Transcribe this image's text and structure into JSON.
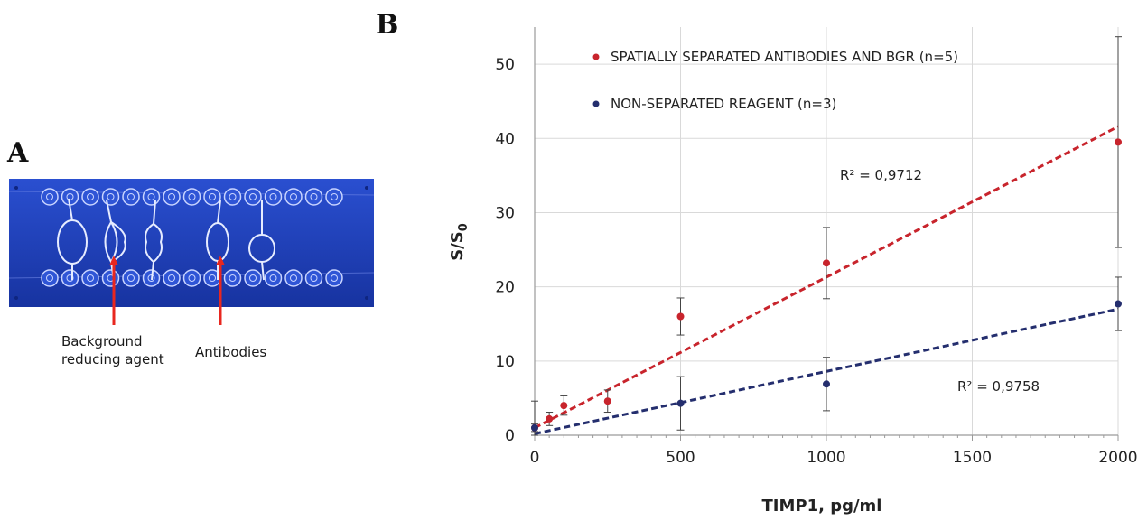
{
  "panel_a": {
    "label": "A",
    "captions": {
      "background": [
        "Background",
        "reducing agent"
      ],
      "antibodies": "Antibodies"
    },
    "colors": {
      "chip": "#1e3fb4",
      "arrow": "#e8271f"
    }
  },
  "panel_b": {
    "label": "B"
  },
  "chart_data": {
    "type": "scatter",
    "xlabel": "TIMP1, pg/ml",
    "ylabel": "S/S",
    "ylabel_sub": "0",
    "xlim": [
      0,
      2000
    ],
    "ylim": [
      0,
      55
    ],
    "xticks": [
      0,
      500,
      1000,
      1500,
      2000
    ],
    "yticks": [
      0,
      10,
      20,
      30,
      40,
      50
    ],
    "grid": true,
    "legend_position": "top-left",
    "series": [
      {
        "name": "SPATIALLY SEPARATED ANTIBODIES AND BGR  (n=5)",
        "color": "#c8242c",
        "x": [
          0,
          50,
          100,
          250,
          500,
          1000,
          2000
        ],
        "y": [
          1.0,
          2.2,
          4.0,
          4.6,
          16.0,
          23.2,
          39.5
        ],
        "err": [
          0.5,
          0.9,
          1.3,
          1.5,
          2.5,
          4.8,
          14.2
        ],
        "trend": {
          "intercept": 1.0,
          "slope": 0.0203
        },
        "r2_label": "R² = 0,9712"
      },
      {
        "name": "NON-SEPARATED REAGENT  (n=3)",
        "color": "#242e6e",
        "x": [
          0,
          500,
          1000,
          2000
        ],
        "y": [
          1.0,
          4.3,
          6.9,
          17.7
        ],
        "err": [
          3.6,
          3.6,
          3.6,
          3.6
        ],
        "trend": {
          "intercept": 0.2,
          "slope": 0.0084
        },
        "r2_label": "R² = 0,9758"
      }
    ]
  }
}
